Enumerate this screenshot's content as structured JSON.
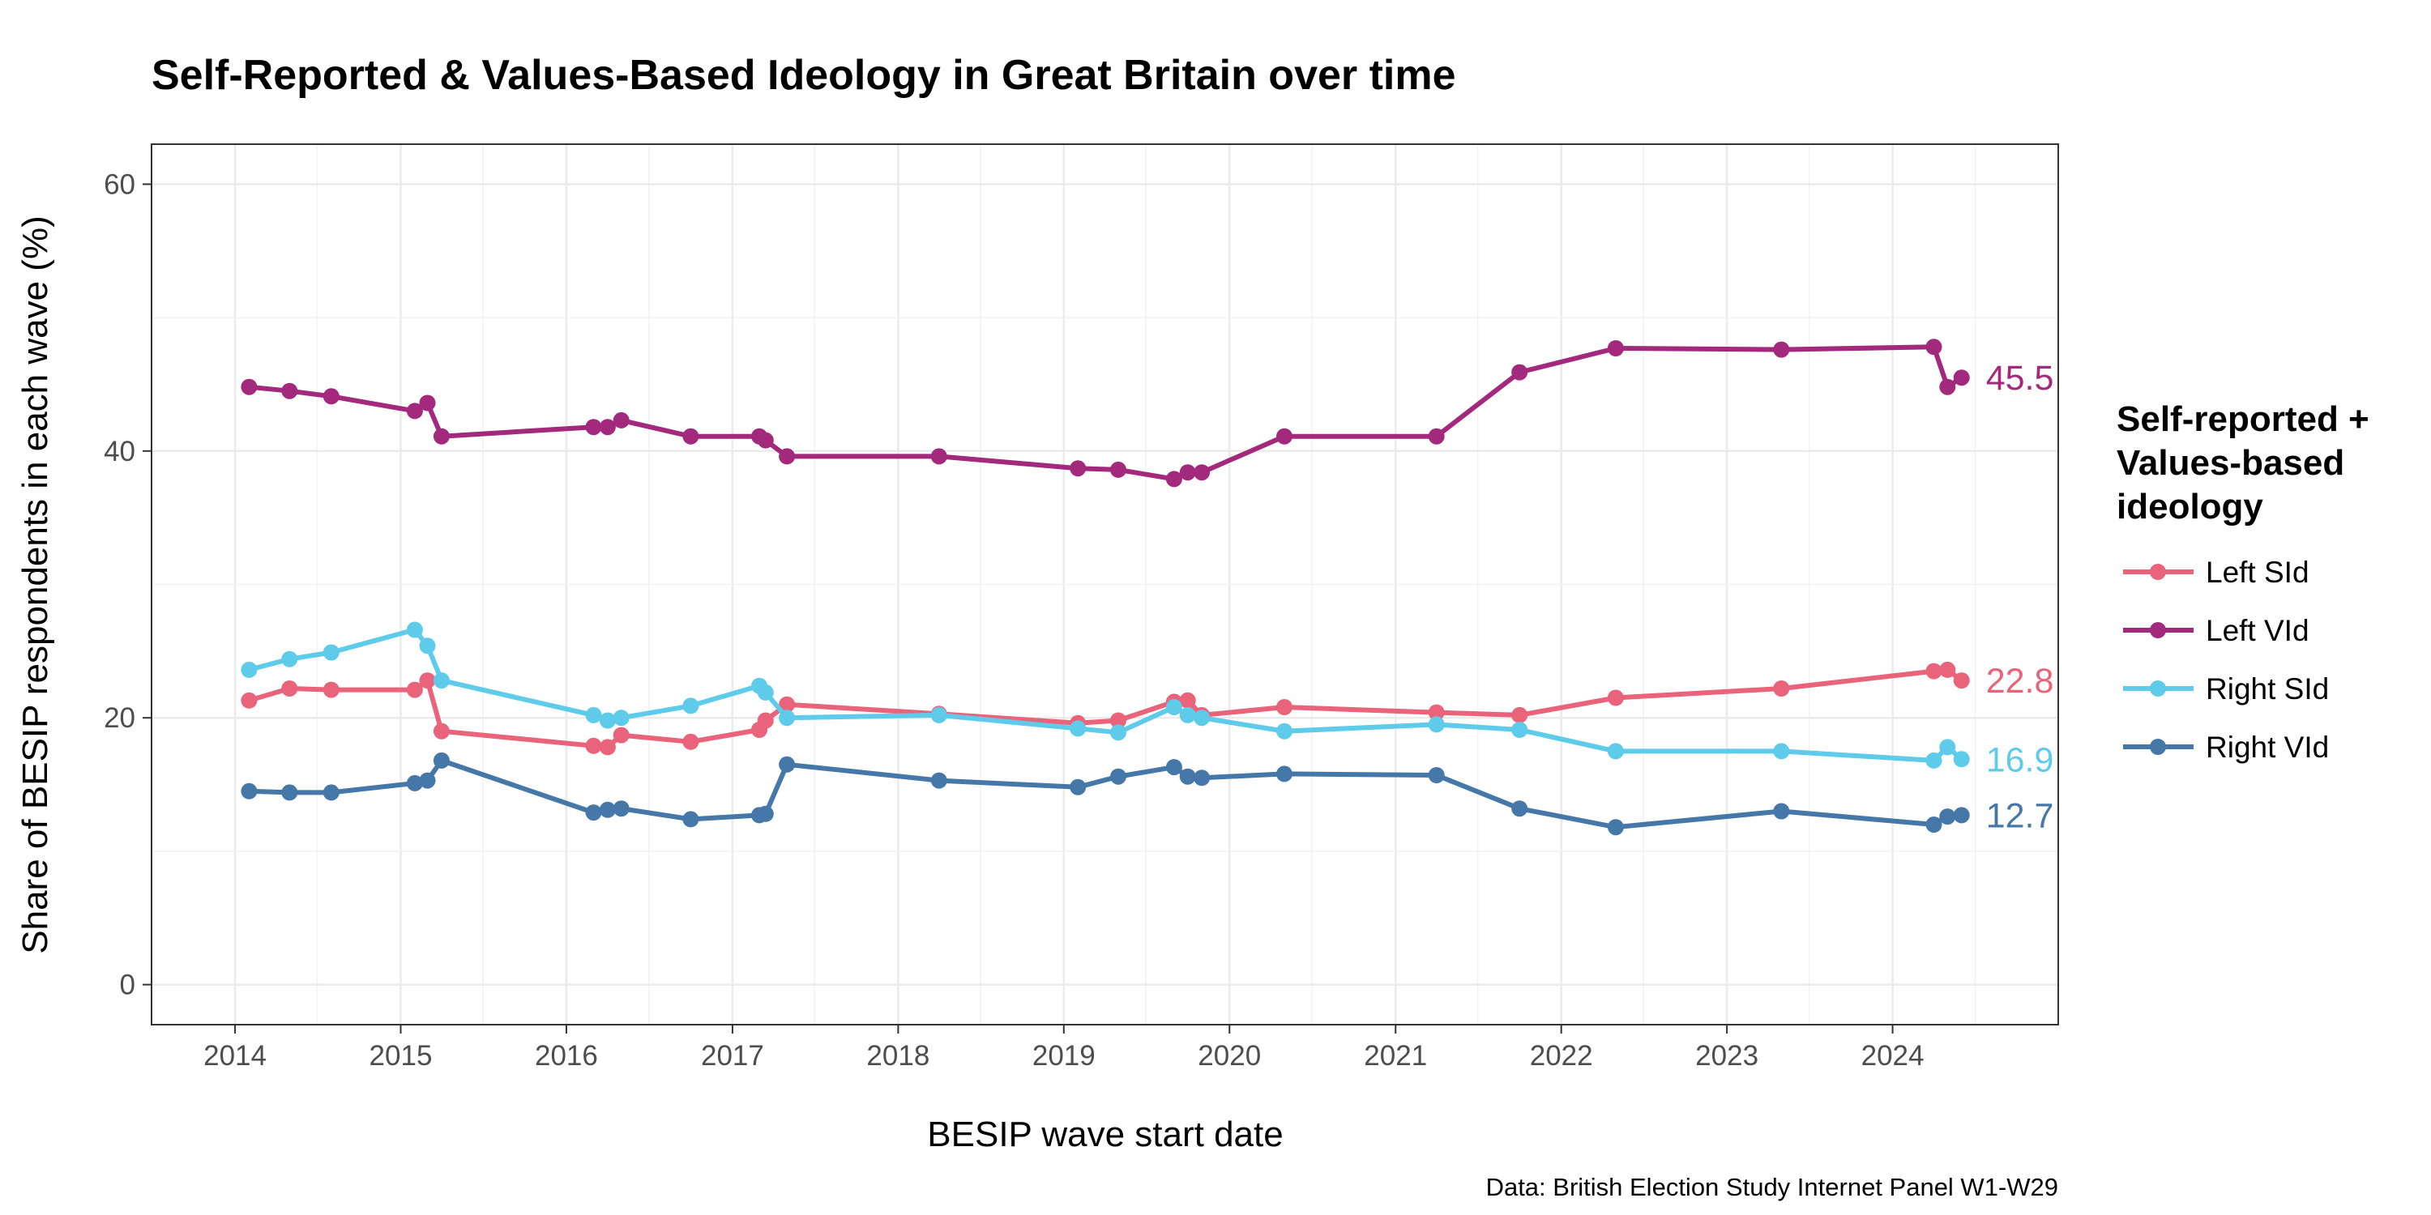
{
  "chart_data": {
    "type": "line",
    "title": "Self-Reported & Values-Based Ideology in Great Britain over time",
    "xlabel": "BESIP wave start date",
    "ylabel": "Share of BESIP respondents in each wave (%)",
    "caption": "Data: British Election Study Internet Panel W1-W29",
    "xlim": [
      "2013-07-01",
      "2024-12-31"
    ],
    "ylim": [
      -3,
      63
    ],
    "x_ticks": [
      "2014",
      "2015",
      "2016",
      "2017",
      "2018",
      "2019",
      "2020",
      "2021",
      "2022",
      "2023",
      "2024"
    ],
    "y_ticks": [
      "0",
      "20",
      "40",
      "60"
    ],
    "grid": true,
    "legend": {
      "title": [
        "Self-reported +",
        "Values-based",
        "ideology"
      ],
      "position": "right"
    },
    "series": [
      {
        "name": "Left SId",
        "color": "#e9637a",
        "end_label": "22.8",
        "points": [
          [
            "2014-02-01",
            21.3
          ],
          [
            "2014-05-01",
            22.2
          ],
          [
            "2014-08-01",
            22.1
          ],
          [
            "2015-02-01",
            22.1
          ],
          [
            "2015-03-01",
            22.8
          ],
          [
            "2015-04-01",
            19.0
          ],
          [
            "2016-03-01",
            17.9
          ],
          [
            "2016-04-01",
            17.8
          ],
          [
            "2016-05-01",
            18.7
          ],
          [
            "2016-10-01",
            18.2
          ],
          [
            "2017-03-01",
            19.1
          ],
          [
            "2017-03-15",
            19.8
          ],
          [
            "2017-05-01",
            21.0
          ],
          [
            "2018-04-01",
            20.3
          ],
          [
            "2019-02-01",
            19.6
          ],
          [
            "2019-05-01",
            19.8
          ],
          [
            "2019-09-01",
            21.2
          ],
          [
            "2019-10-01",
            21.3
          ],
          [
            "2019-11-01",
            20.2
          ],
          [
            "2020-05-01",
            20.8
          ],
          [
            "2021-04-01",
            20.4
          ],
          [
            "2021-10-01",
            20.2
          ],
          [
            "2022-05-01",
            21.5
          ],
          [
            "2023-05-01",
            22.2
          ],
          [
            "2024-04-01",
            23.5
          ],
          [
            "2024-05-01",
            23.6
          ],
          [
            "2024-06-01",
            22.8
          ]
        ]
      },
      {
        "name": "Left VId",
        "color": "#a3297d",
        "end_label": "45.5",
        "points": [
          [
            "2014-02-01",
            44.8
          ],
          [
            "2014-05-01",
            44.5
          ],
          [
            "2014-08-01",
            44.1
          ],
          [
            "2015-02-01",
            43.0
          ],
          [
            "2015-03-01",
            43.6
          ],
          [
            "2015-04-01",
            41.1
          ],
          [
            "2016-03-01",
            41.8
          ],
          [
            "2016-04-01",
            41.8
          ],
          [
            "2016-05-01",
            42.3
          ],
          [
            "2016-10-01",
            41.1
          ],
          [
            "2017-03-01",
            41.1
          ],
          [
            "2017-03-15",
            40.8
          ],
          [
            "2017-05-01",
            39.6
          ],
          [
            "2018-04-01",
            39.6
          ],
          [
            "2019-02-01",
            38.7
          ],
          [
            "2019-05-01",
            38.6
          ],
          [
            "2019-09-01",
            37.9
          ],
          [
            "2019-10-01",
            38.4
          ],
          [
            "2019-11-01",
            38.4
          ],
          [
            "2020-05-01",
            41.1
          ],
          [
            "2021-04-01",
            41.1
          ],
          [
            "2021-10-01",
            45.9
          ],
          [
            "2022-05-01",
            47.7
          ],
          [
            "2023-05-01",
            47.6
          ],
          [
            "2024-04-01",
            47.8
          ],
          [
            "2024-05-01",
            44.8
          ],
          [
            "2024-06-01",
            45.5
          ]
        ]
      },
      {
        "name": "Right SId",
        "color": "#5ecbea",
        "end_label": "16.9",
        "points": [
          [
            "2014-02-01",
            23.6
          ],
          [
            "2014-05-01",
            24.4
          ],
          [
            "2014-08-01",
            24.9
          ],
          [
            "2015-02-01",
            26.6
          ],
          [
            "2015-03-01",
            25.4
          ],
          [
            "2015-04-01",
            22.8
          ],
          [
            "2016-03-01",
            20.2
          ],
          [
            "2016-04-01",
            19.8
          ],
          [
            "2016-05-01",
            20.0
          ],
          [
            "2016-10-01",
            20.9
          ],
          [
            "2017-03-01",
            22.4
          ],
          [
            "2017-03-15",
            21.9
          ],
          [
            "2017-05-01",
            20.0
          ],
          [
            "2018-04-01",
            20.2
          ],
          [
            "2019-02-01",
            19.2
          ],
          [
            "2019-05-01",
            18.9
          ],
          [
            "2019-09-01",
            20.8
          ],
          [
            "2019-10-01",
            20.2
          ],
          [
            "2019-11-01",
            20.0
          ],
          [
            "2020-05-01",
            19.0
          ],
          [
            "2021-04-01",
            19.5
          ],
          [
            "2021-10-01",
            19.1
          ],
          [
            "2022-05-01",
            17.5
          ],
          [
            "2023-05-01",
            17.5
          ],
          [
            "2024-04-01",
            16.8
          ],
          [
            "2024-05-01",
            17.8
          ],
          [
            "2024-06-01",
            16.9
          ]
        ]
      },
      {
        "name": "Right VId",
        "color": "#4577a8",
        "end_label": "12.7",
        "points": [
          [
            "2014-02-01",
            14.5
          ],
          [
            "2014-05-01",
            14.4
          ],
          [
            "2014-08-01",
            14.4
          ],
          [
            "2015-02-01",
            15.1
          ],
          [
            "2015-03-01",
            15.3
          ],
          [
            "2015-04-01",
            16.8
          ],
          [
            "2016-03-01",
            12.9
          ],
          [
            "2016-04-01",
            13.1
          ],
          [
            "2016-05-01",
            13.2
          ],
          [
            "2016-10-01",
            12.4
          ],
          [
            "2017-03-01",
            12.7
          ],
          [
            "2017-03-15",
            12.8
          ],
          [
            "2017-05-01",
            16.5
          ],
          [
            "2018-04-01",
            15.3
          ],
          [
            "2019-02-01",
            14.8
          ],
          [
            "2019-05-01",
            15.6
          ],
          [
            "2019-09-01",
            16.3
          ],
          [
            "2019-10-01",
            15.6
          ],
          [
            "2019-11-01",
            15.5
          ],
          [
            "2020-05-01",
            15.8
          ],
          [
            "2021-04-01",
            15.7
          ],
          [
            "2021-10-01",
            13.2
          ],
          [
            "2022-05-01",
            11.8
          ],
          [
            "2023-05-01",
            13.0
          ],
          [
            "2024-04-01",
            12.0
          ],
          [
            "2024-05-01",
            12.6
          ],
          [
            "2024-06-01",
            12.7
          ]
        ]
      }
    ]
  }
}
